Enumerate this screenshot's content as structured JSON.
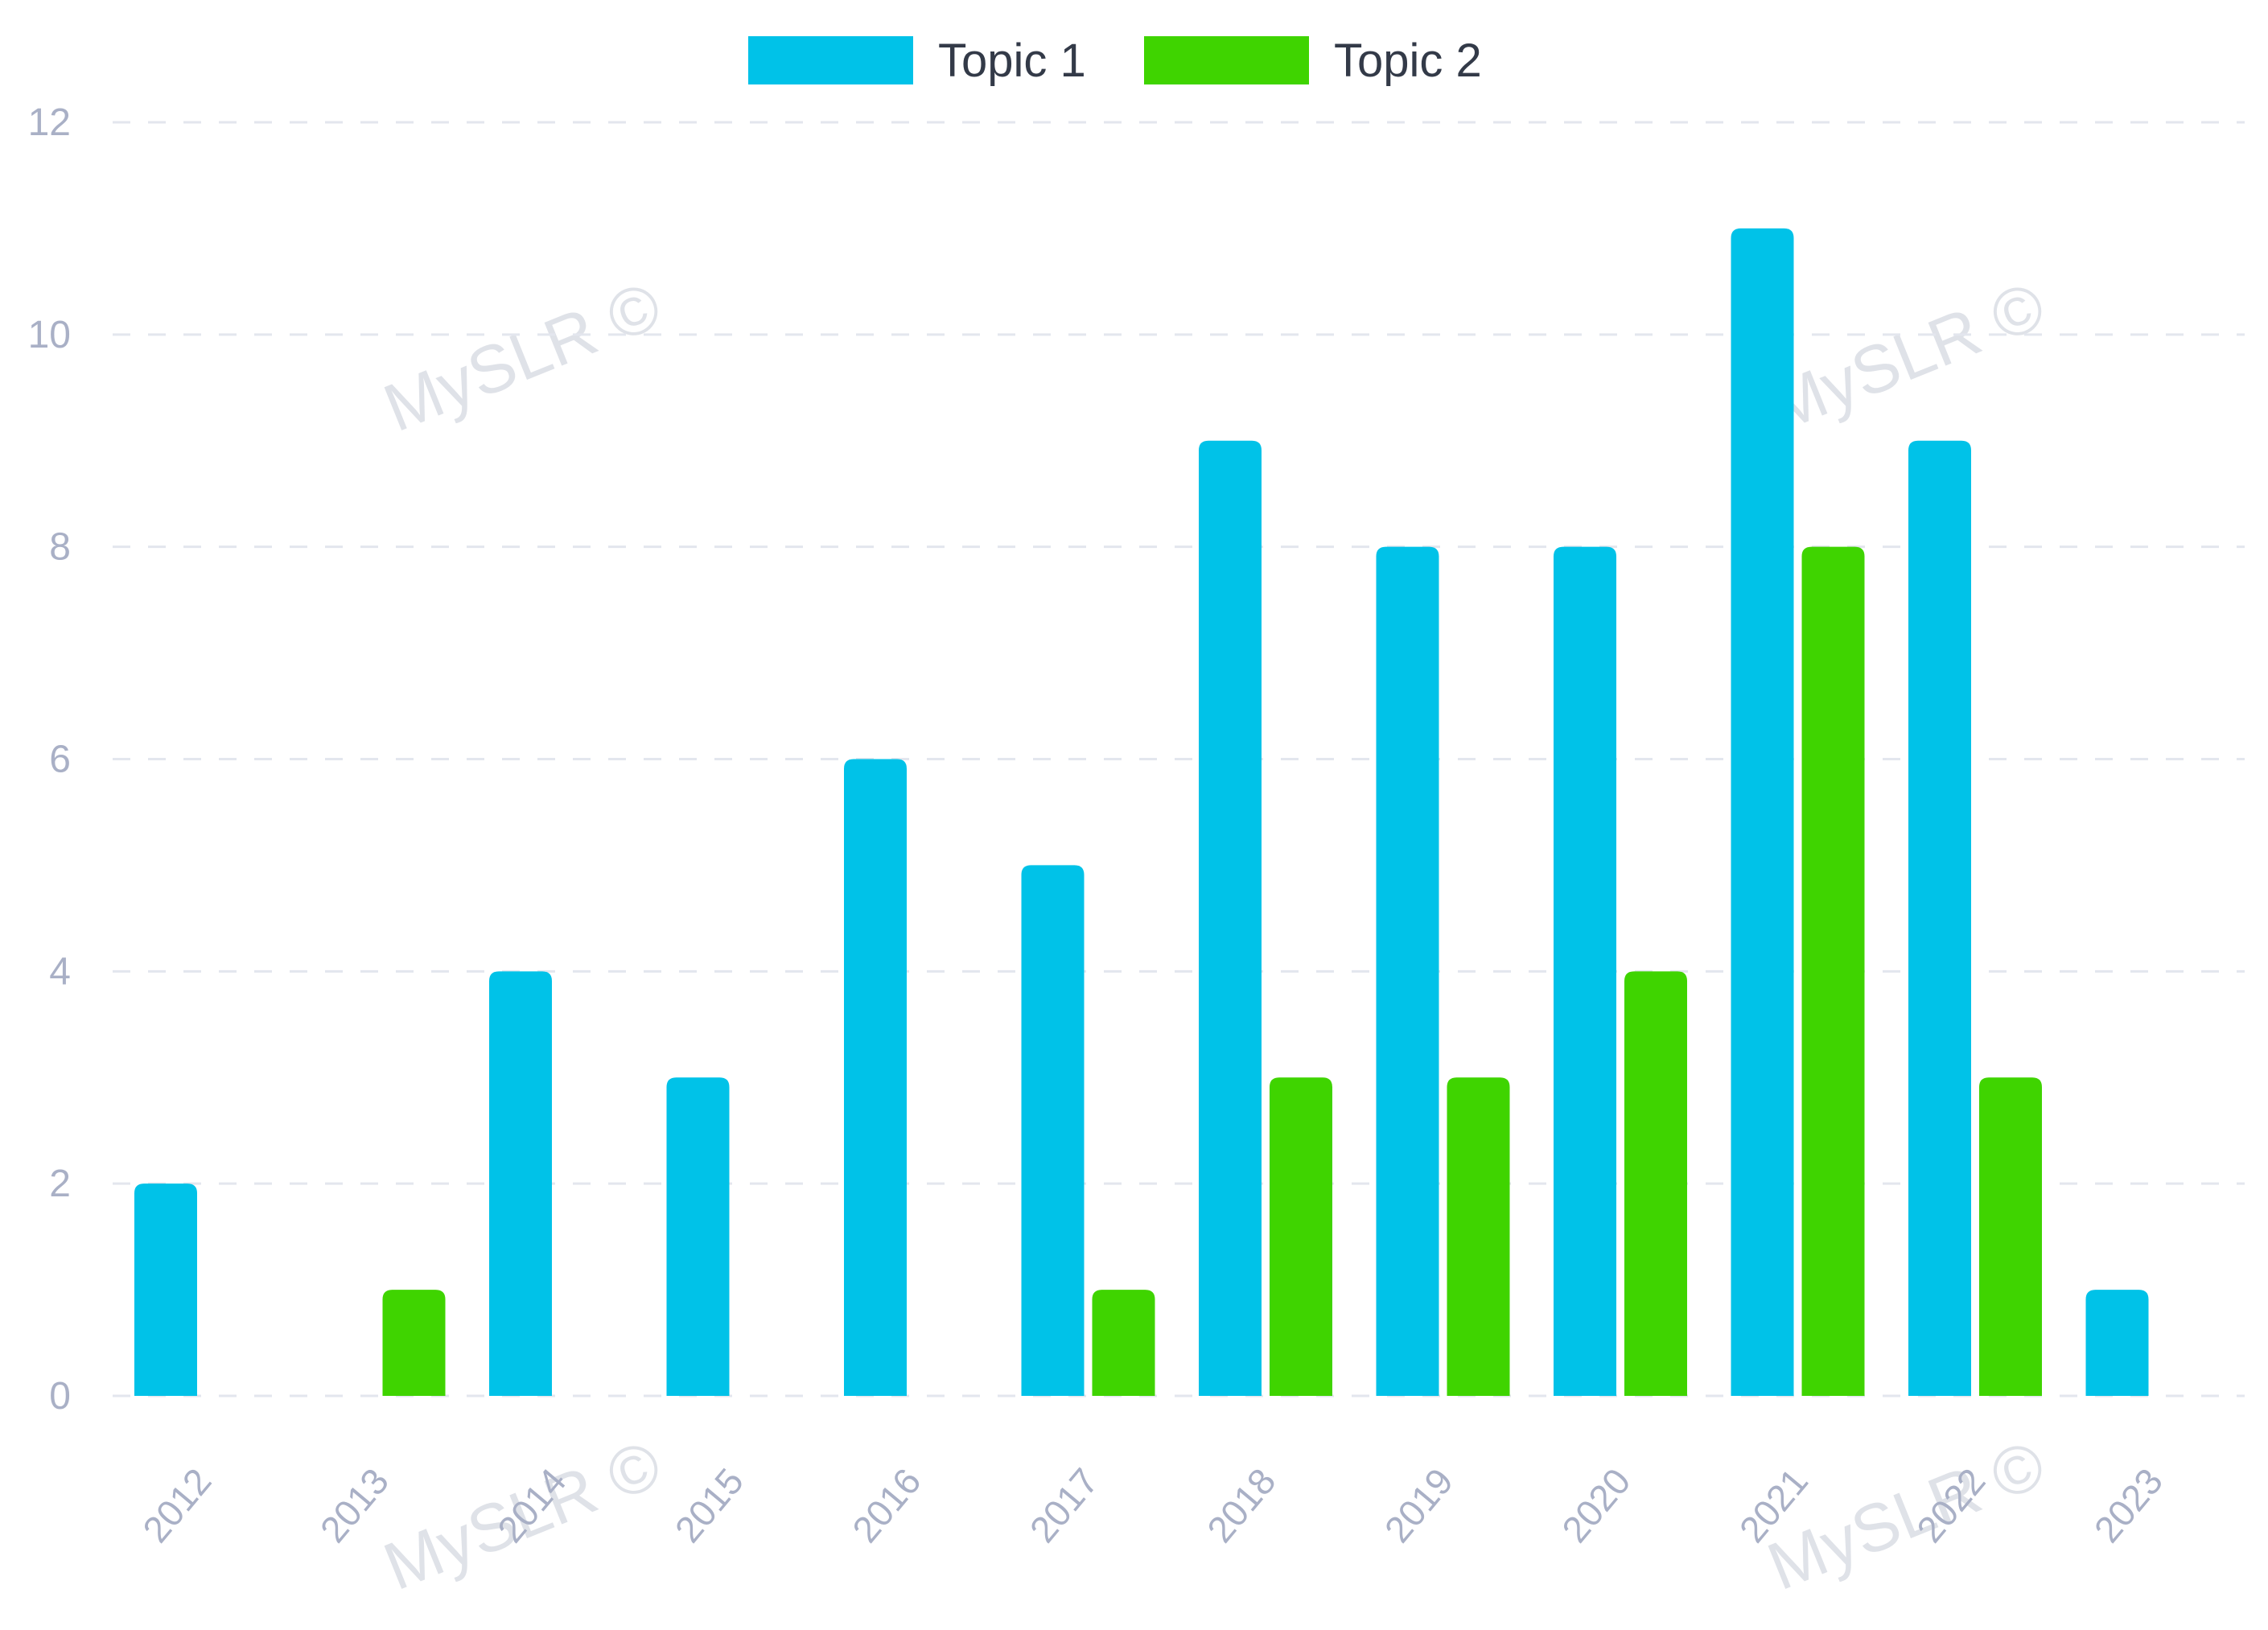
{
  "chart_data": {
    "type": "bar",
    "categories": [
      "2012",
      "2013",
      "2014",
      "2015",
      "2016",
      "2017",
      "2018",
      "2019",
      "2020",
      "2021",
      "2022",
      "2023"
    ],
    "series": [
      {
        "name": "Topic 1",
        "color": "#00c2e8",
        "values": [
          2,
          0,
          4,
          3,
          6,
          5,
          9,
          8,
          8,
          11,
          9,
          1
        ]
      },
      {
        "name": "Topic 2",
        "color": "#3fd400",
        "values": [
          0,
          1,
          0,
          0,
          0,
          1,
          3,
          3,
          4,
          8,
          3,
          0
        ]
      }
    ],
    "yticks": [
      "0",
      "2",
      "4",
      "6",
      "8",
      "10",
      "12"
    ],
    "ylim": [
      0,
      12
    ],
    "grid": true,
    "legend_position": "top-center",
    "watermark": "MySLR ©"
  }
}
